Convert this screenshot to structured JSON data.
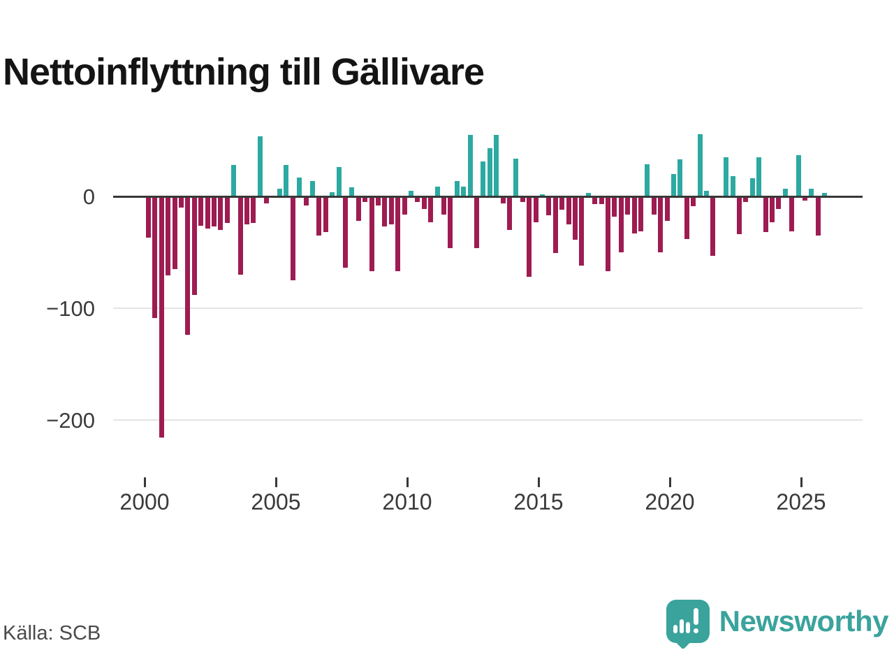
{
  "title": "Nettoinflyttning till Gällivare",
  "source": "Källa: SCB",
  "brand": "Newsworthy",
  "colors": {
    "positive": "#2ca9a1",
    "negative": "#9e1c51",
    "axis": "#383838",
    "grid": "#e4e4e4",
    "tick_label": "#3a3a3a",
    "title": "#141414",
    "source": "#4a4a4a",
    "brand": "#3aa39c"
  },
  "chart_data": {
    "type": "bar",
    "title": "Nettoinflyttning till Gällivare",
    "frequency": "quarterly",
    "start": "2000-Q1",
    "end": "2025-Q4",
    "unit": "persons (net migration per quarter)",
    "values": [
      -37,
      -109,
      -216,
      -71,
      -65,
      -10,
      -124,
      -88,
      -26,
      -29,
      -27,
      -30,
      -24,
      28,
      -70,
      -25,
      -24,
      54,
      -6,
      0,
      7,
      28,
      -75,
      17,
      -8,
      14,
      -35,
      -32,
      4,
      26,
      -64,
      8,
      -22,
      -5,
      -67,
      -8,
      -27,
      -25,
      -67,
      -16,
      5,
      -5,
      -11,
      -23,
      9,
      -16,
      -46,
      14,
      9,
      55,
      -46,
      31,
      43,
      55,
      -6,
      -30,
      34,
      -5,
      -72,
      -23,
      2,
      -17,
      -51,
      -12,
      -25,
      -39,
      -62,
      3,
      -7,
      -7,
      -67,
      -18,
      -50,
      -16,
      -33,
      -31,
      29,
      -16,
      -50,
      -22,
      20,
      33,
      -38,
      -9,
      56,
      5,
      -53,
      0,
      35,
      18,
      -34,
      -5,
      16,
      35,
      -32,
      -23,
      -11,
      7,
      -31,
      37,
      -4,
      7,
      -35,
      3
    ],
    "ytick_labels": [
      "0",
      "−100",
      "−200"
    ],
    "ytick_values": [
      0,
      -100,
      -200
    ],
    "xtick_years": [
      2000,
      2005,
      2010,
      2015,
      2020,
      2025
    ],
    "ylim": [
      -230,
      65
    ],
    "grid": "horizontal",
    "legend": "none",
    "bar_color_positive": "#2ca9a1",
    "bar_color_negative": "#9e1c51"
  }
}
